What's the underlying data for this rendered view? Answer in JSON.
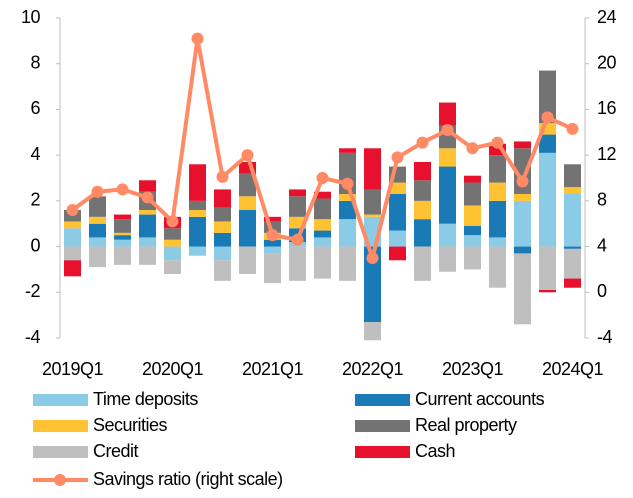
{
  "chart_data": {
    "type": "bar",
    "categories": [
      "2019Q1",
      null,
      null,
      null,
      "2020Q1",
      null,
      null,
      null,
      "2021Q1",
      null,
      null,
      null,
      "2022Q1",
      null,
      null,
      null,
      "2023Q1",
      null,
      null,
      null,
      "2024Q1"
    ],
    "ylim": [
      -4,
      10
    ],
    "yticks": [
      -4,
      -2,
      0,
      2,
      4,
      6,
      8,
      10
    ],
    "y2lim": [
      -4,
      24
    ],
    "y2ticks": [
      -4,
      0,
      4,
      8,
      12,
      16,
      20,
      24
    ],
    "series": [
      {
        "name": "Time deposits",
        "color": "#8ccbe6",
        "values": [
          0.8,
          0.4,
          0.3,
          0.4,
          -0.6,
          -0.4,
          -0.6,
          0,
          -0.3,
          0.2,
          0.4,
          1.2,
          1.3,
          0.7,
          0,
          1.0,
          0.5,
          0.4,
          2.0,
          4.1,
          2.3
        ]
      },
      {
        "name": "Current accounts",
        "color": "#1a7ab5",
        "values": [
          0,
          0.6,
          0.2,
          1.0,
          0,
          1.3,
          0.6,
          1.6,
          0.3,
          0.6,
          0.3,
          0.8,
          -3.3,
          1.6,
          1.2,
          2.5,
          0.4,
          1.6,
          -0.3,
          0.8,
          -0.1
        ]
      },
      {
        "name": "Securities",
        "color": "#ffc233",
        "values": [
          0.3,
          0.3,
          0.1,
          0.2,
          0.3,
          0.3,
          0.5,
          0.6,
          0.3,
          0.5,
          0.5,
          0.3,
          0.1,
          0.5,
          0.8,
          0.8,
          0.9,
          0.8,
          0.3,
          0.5,
          0.3
        ]
      },
      {
        "name": "Real property",
        "color": "#737373",
        "values": [
          0.5,
          0.9,
          0.6,
          0.8,
          0.5,
          0.4,
          0.6,
          1.0,
          0.5,
          0.9,
          0.9,
          1.8,
          1.1,
          0.7,
          0.9,
          1.0,
          1.0,
          1.2,
          2.0,
          2.3,
          1.0
        ]
      },
      {
        "name": "Credit",
        "color": "#bfbfbf",
        "values": [
          -0.6,
          -0.9,
          -0.8,
          -0.8,
          -0.6,
          0,
          -0.9,
          -1.2,
          -1.3,
          -1.5,
          -1.4,
          -1.5,
          -0.8,
          0,
          -1.5,
          -1.1,
          -1.0,
          -1.8,
          -3.1,
          -1.9,
          -1.3
        ]
      },
      {
        "name": "Cash",
        "color": "#e8112d",
        "values": [
          -0.7,
          0,
          0.2,
          0.5,
          0.5,
          1.6,
          0.8,
          0.5,
          0.2,
          0.3,
          0.3,
          0.2,
          1.8,
          -0.6,
          0.8,
          1.0,
          0.3,
          0.5,
          0.3,
          -0.1,
          -0.4
        ]
      },
      {
        "name": "Savings ratio (right scale)",
        "color": "#ff8a65",
        "type": "line",
        "axis": "y2",
        "values": [
          7.2,
          8.8,
          9.0,
          8.3,
          6.2,
          22.2,
          10.1,
          12.0,
          5.0,
          4.6,
          10.0,
          9.5,
          3.0,
          11.8,
          13.1,
          14.2,
          12.6,
          13.1,
          9.7,
          15.3,
          14.3
        ]
      }
    ]
  }
}
